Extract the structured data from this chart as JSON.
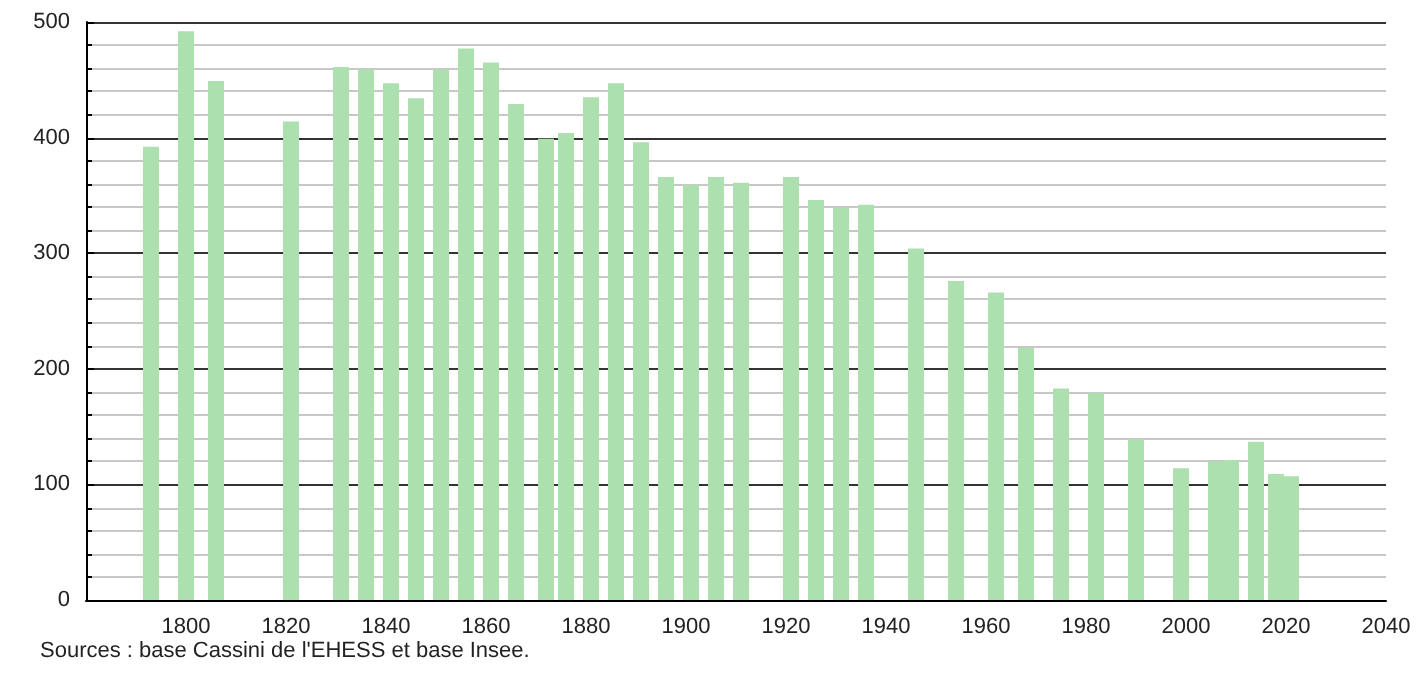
{
  "chart_data": {
    "type": "bar",
    "x": [
      1793,
      1800,
      1806,
      1821,
      1831,
      1836,
      1841,
      1846,
      1851,
      1856,
      1861,
      1866,
      1872,
      1876,
      1881,
      1886,
      1891,
      1896,
      1901,
      1906,
      1911,
      1921,
      1926,
      1931,
      1936,
      1946,
      1954,
      1962,
      1968,
      1975,
      1982,
      1990,
      1999,
      2006,
      2009,
      2014,
      2018,
      2021
    ],
    "values": [
      392,
      492,
      449,
      414,
      461,
      459,
      447,
      434,
      459,
      477,
      465,
      429,
      399,
      404,
      435,
      447,
      396,
      366,
      359,
      366,
      361,
      366,
      346,
      339,
      342,
      304,
      276,
      266,
      218,
      183,
      179,
      139,
      114,
      120,
      121,
      137,
      109,
      107
    ],
    "color": "#ace1af",
    "xlim": [
      1780,
      2040
    ],
    "xticks": [
      1800,
      1820,
      1840,
      1860,
      1880,
      1900,
      1920,
      1940,
      1960,
      1980,
      2000,
      2020,
      2040
    ],
    "ylim": [
      0,
      500
    ],
    "yticks": [
      0,
      100,
      200,
      300,
      400,
      500
    ],
    "grid": "y",
    "annotations": [
      "Sources : base Cassini de l'EHESS et base Insee."
    ]
  }
}
